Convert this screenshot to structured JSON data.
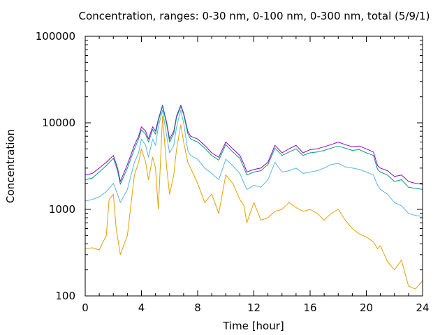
{
  "chart_data": {
    "type": "line",
    "title": "Concentration, ranges: 0-30 nm, 0-100 nm, 0-300 nm, total (5/9/1)",
    "xlabel": "Time [hour]",
    "ylabel": "Concentration",
    "xlim": [
      0,
      24
    ],
    "ylim": [
      100,
      100000
    ],
    "yscale": "log",
    "grid": false,
    "legend": "none",
    "x_ticks": [
      0,
      4,
      8,
      12,
      16,
      20,
      24
    ],
    "y_ticks": [
      100,
      1000,
      10000,
      100000
    ],
    "series": [
      {
        "color": "#9400d3",
        "x": [
          0,
          0.5,
          1,
          1.5,
          2,
          2.3,
          2.5,
          3,
          3.5,
          3.8,
          4,
          4.3,
          4.5,
          4.8,
          5,
          5.2,
          5.5,
          5.8,
          6,
          6.3,
          6.5,
          6.8,
          7,
          7.3,
          7.5,
          8,
          8.5,
          9,
          9.5,
          10,
          10.5,
          11,
          11.3,
          11.5,
          12,
          12.5,
          13,
          13.5,
          14,
          14.5,
          15,
          15.5,
          16,
          16.5,
          17,
          17.5,
          18,
          18.5,
          19,
          19.5,
          20,
          20.5,
          20.8,
          21,
          21.5,
          22,
          22.5,
          23,
          23.5,
          24
        ],
        "y": [
          2500,
          2600,
          3000,
          3500,
          4200,
          3000,
          2100,
          3300,
          5500,
          7000,
          9000,
          8000,
          6500,
          9000,
          8000,
          11000,
          16000,
          10000,
          6500,
          8000,
          12000,
          16000,
          13000,
          8000,
          7000,
          6500,
          5500,
          4500,
          4000,
          6000,
          5000,
          4200,
          3300,
          2700,
          2900,
          3000,
          3500,
          5500,
          4500,
          5000,
          5500,
          4500,
          4900,
          5000,
          5300,
          5600,
          6000,
          5600,
          5300,
          5400,
          5000,
          4600,
          3200,
          3000,
          2800,
          2400,
          2500,
          2100,
          2000,
          1950
        ]
      },
      {
        "color": "#009e73",
        "x": [
          0,
          0.5,
          1,
          1.5,
          2,
          2.3,
          2.5,
          3,
          3.5,
          3.8,
          4,
          4.3,
          4.5,
          4.8,
          5,
          5.2,
          5.5,
          5.8,
          6,
          6.3,
          6.5,
          6.8,
          7,
          7.3,
          7.5,
          8,
          8.5,
          9,
          9.5,
          10,
          10.5,
          11,
          11.3,
          11.5,
          12,
          12.5,
          13,
          13.5,
          14,
          14.5,
          15,
          15.5,
          16,
          16.5,
          17,
          17.5,
          18,
          18.5,
          19,
          19.5,
          20,
          20.5,
          20.8,
          21,
          21.5,
          22,
          22.5,
          23,
          23.5,
          24
        ],
        "y": [
          2200,
          2300,
          2700,
          3200,
          3900,
          2800,
          1950,
          3000,
          5000,
          6500,
          8300,
          7400,
          6000,
          8400,
          7400,
          10500,
          15500,
          9500,
          6000,
          7500,
          11500,
          15500,
          12500,
          7500,
          6500,
          6000,
          5100,
          4200,
          3700,
          5600,
          4600,
          3900,
          3000,
          2500,
          2700,
          2800,
          3300,
          5100,
          4200,
          4600,
          5000,
          4200,
          4500,
          4600,
          4800,
          5100,
          5400,
          5100,
          4800,
          4900,
          4500,
          4200,
          2900,
          2700,
          2500,
          2100,
          2200,
          1800,
          1750,
          1700
        ]
      },
      {
        "color": "#56b4e9",
        "x": [
          0,
          0.5,
          1,
          1.5,
          2,
          2.3,
          2.5,
          3,
          3.5,
          3.8,
          4,
          4.3,
          4.5,
          4.8,
          5,
          5.2,
          5.5,
          5.8,
          6,
          6.3,
          6.5,
          6.8,
          7,
          7.3,
          7.5,
          8,
          8.5,
          9,
          9.5,
          10,
          10.5,
          11,
          11.3,
          11.5,
          12,
          12.5,
          13,
          13.5,
          14,
          14.5,
          15,
          15.5,
          16,
          16.5,
          17,
          17.5,
          18,
          18.5,
          19,
          19.5,
          20,
          20.5,
          20.8,
          21,
          21.5,
          22,
          22.5,
          23,
          23.5,
          24
        ],
        "y": [
          1250,
          1300,
          1400,
          1600,
          2000,
          1500,
          1200,
          1700,
          3500,
          4500,
          6500,
          5500,
          4000,
          6500,
          5500,
          9000,
          14000,
          7000,
          4500,
          5500,
          9000,
          14000,
          10000,
          4800,
          4200,
          3800,
          3000,
          2600,
          2200,
          3800,
          3200,
          2600,
          2000,
          1700,
          1900,
          1800,
          2200,
          3500,
          2700,
          2800,
          3000,
          2600,
          2700,
          2800,
          3000,
          3300,
          3400,
          3100,
          3000,
          2900,
          2700,
          2500,
          1900,
          1700,
          1500,
          1200,
          1100,
          900,
          850,
          830
        ]
      },
      {
        "color": "#e69f00",
        "x": [
          0,
          0.5,
          1,
          1.5,
          1.7,
          2,
          2.2,
          2.5,
          3,
          3.5,
          3.8,
          4,
          4.3,
          4.5,
          4.8,
          5,
          5.2,
          5.5,
          5.8,
          6,
          6.3,
          6.5,
          6.8,
          7,
          7.3,
          7.5,
          8,
          8.5,
          9,
          9.5,
          10,
          10.5,
          11,
          11.3,
          11.5,
          12,
          12.5,
          13,
          13.5,
          14,
          14.5,
          15,
          15.5,
          16,
          16.5,
          17,
          17.5,
          18,
          18.5,
          19,
          19.5,
          20,
          20.5,
          20.8,
          21,
          21.5,
          22,
          22.5,
          23,
          23.5,
          24
        ],
        "y": [
          350,
          360,
          340,
          500,
          1300,
          1500,
          600,
          300,
          500,
          2500,
          3500,
          5000,
          3500,
          2200,
          4000,
          3000,
          1000,
          12000,
          3000,
          1500,
          2500,
          5000,
          9500,
          6000,
          3500,
          3000,
          2000,
          1200,
          1500,
          900,
          2500,
          2000,
          1300,
          1100,
          700,
          1200,
          750,
          800,
          950,
          1000,
          1200,
          1050,
          950,
          1000,
          900,
          750,
          900,
          1000,
          750,
          600,
          520,
          480,
          420,
          350,
          380,
          250,
          200,
          260,
          130,
          120,
          150
        ]
      }
    ]
  }
}
